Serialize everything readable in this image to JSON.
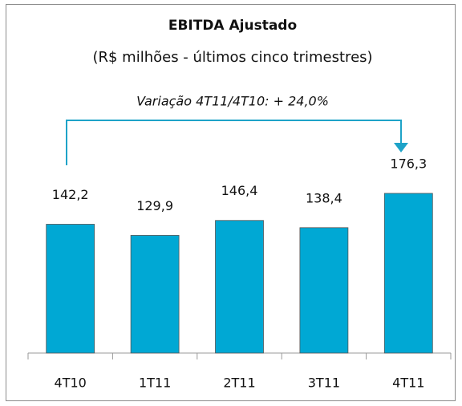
{
  "chart_data": {
    "type": "bar",
    "title": "EBITDA Ajustado",
    "subtitle": "(R$ milhões - últimos cinco trimestres)",
    "annotation": "Variação 4T11/4T10: + 24,0%",
    "categories": [
      "4T10",
      "1T11",
      "2T11",
      "3T11",
      "4T11"
    ],
    "values": [
      142.2,
      129.9,
      146.4,
      138.4,
      176.3
    ],
    "value_labels": [
      "142,2",
      "129,9",
      "146,4",
      "138,4",
      "176,3"
    ],
    "color": "#00a8d4"
  }
}
